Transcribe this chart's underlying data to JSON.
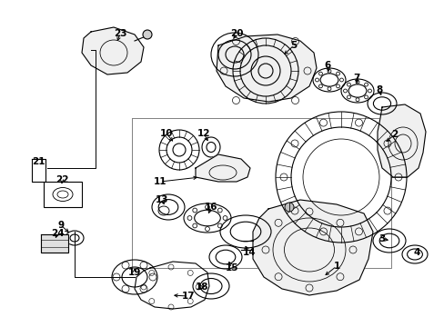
{
  "background_color": "#ffffff",
  "line_color": "#000000",
  "leaders": [
    [
      370,
      293,
      355,
      305,
      1
    ],
    [
      434,
      148,
      422,
      158,
      2
    ],
    [
      420,
      263,
      430,
      265,
      3
    ],
    [
      458,
      278,
      456,
      280,
      4
    ],
    [
      323,
      50,
      310,
      62,
      5
    ],
    [
      360,
      72,
      362,
      82,
      6
    ],
    [
      392,
      86,
      393,
      95,
      7
    ],
    [
      417,
      99,
      420,
      108,
      8
    ],
    [
      67,
      248,
      78,
      258,
      9
    ],
    [
      183,
      147,
      192,
      158,
      10
    ],
    [
      176,
      200,
      220,
      195,
      11
    ],
    [
      224,
      147,
      230,
      158,
      12
    ],
    [
      178,
      220,
      182,
      228,
      13
    ],
    [
      274,
      278,
      268,
      268,
      14
    ],
    [
      255,
      295,
      250,
      285,
      15
    ],
    [
      232,
      228,
      228,
      238,
      16
    ],
    [
      207,
      326,
      188,
      325,
      17
    ],
    [
      222,
      316,
      228,
      315,
      18
    ],
    [
      148,
      300,
      148,
      295,
      19
    ],
    [
      260,
      37,
      255,
      45,
      20
    ],
    [
      42,
      178,
      42,
      178,
      21
    ],
    [
      68,
      198,
      68,
      205,
      22
    ],
    [
      132,
      37,
      128,
      48,
      23
    ],
    [
      63,
      257,
      60,
      265,
      24
    ]
  ]
}
